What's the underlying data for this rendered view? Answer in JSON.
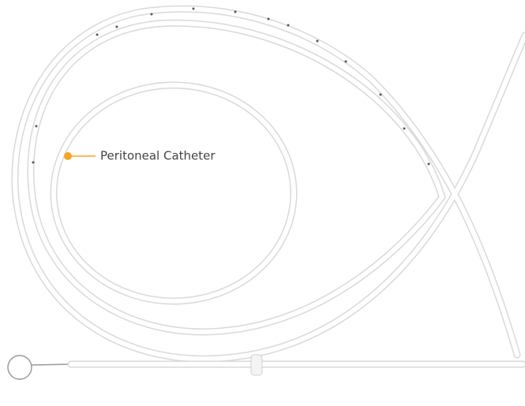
{
  "label": {
    "text": "Peritoneal Catheter"
  }
}
